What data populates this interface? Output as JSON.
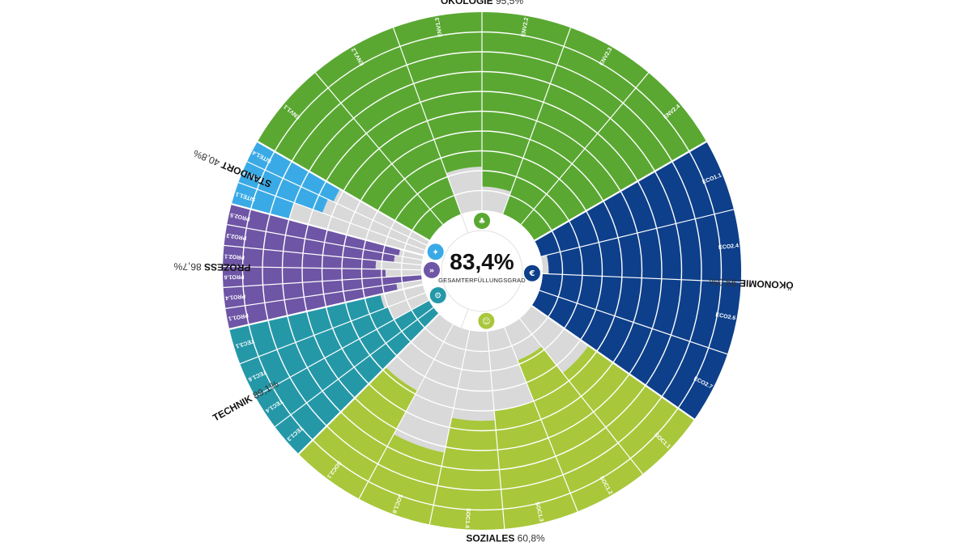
{
  "chart_data": {
    "type": "radial-bar",
    "center": {
      "value": "83,4%",
      "label": "GESAMTERFÜLLUNGSGRAD"
    },
    "max": 100,
    "categories": [
      {
        "name": "ÖKOLOGIE",
        "percent": "95,5%",
        "color": "#5aa832",
        "icon": "leaf-icon",
        "criteria": [
          {
            "label": "ENV1.1",
            "value": 100
          },
          {
            "label": "ENV1.2",
            "value": 100
          },
          {
            "label": "ENV1.3",
            "value": 78
          },
          {
            "label": "ENV2.2",
            "value": 88
          },
          {
            "label": "ENV2.3",
            "value": 100
          },
          {
            "label": "ENV2.4",
            "value": 100
          }
        ]
      },
      {
        "name": "ÖKONOMIE",
        "percent": "99,0%",
        "color": "#0e3f8a",
        "icon": "euro-icon",
        "criteria": [
          {
            "label": "ECO1.1",
            "value": 100
          },
          {
            "label": "ECO2.4",
            "value": 97
          },
          {
            "label": "ECO2.6",
            "value": 100
          },
          {
            "label": "ECO2.7",
            "value": 100
          }
        ]
      },
      {
        "name": "SOZIALES",
        "percent": "60,8%",
        "color": "#a9c73b",
        "icon": "people-icon",
        "criteria": [
          {
            "label": "SOC1.1",
            "value": 65
          },
          {
            "label": "SOC1.2",
            "value": 82
          },
          {
            "label": "SOC1.3",
            "value": 60
          },
          {
            "label": "SOC1.4",
            "value": 55
          },
          {
            "label": "SOC1.6",
            "value": 37
          },
          {
            "label": "SOC2.1",
            "value": 62
          }
        ]
      },
      {
        "name": "TECHNIK",
        "percent": "89,1%",
        "color": "#2598a8",
        "icon": "gears-icon",
        "criteria": [
          {
            "label": "TEC1.3",
            "value": 100
          },
          {
            "label": "TEC1.4",
            "value": 100
          },
          {
            "label": "TEC1.6",
            "value": 80
          },
          {
            "label": "TEC3.1",
            "value": 78
          }
        ]
      },
      {
        "name": "PROZESS",
        "percent": "86,7%",
        "color": "#6e55a5",
        "icon": "process-icon",
        "criteria": [
          {
            "label": "PRO1.1",
            "value": 87
          },
          {
            "label": "PRO1.4",
            "value": 100
          },
          {
            "label": "PRO1.6",
            "value": 82
          },
          {
            "label": "PRO2.1",
            "value": 77
          },
          {
            "label": "PRO2.3",
            "value": 86
          },
          {
            "label": "PRO2.5",
            "value": 88
          }
        ]
      },
      {
        "name": "STANDORT",
        "percent": "40,8%",
        "color": "#3aaae6",
        "icon": "site-icon",
        "criteria": [
          {
            "label": "SITE1.1",
            "value": 30
          },
          {
            "label": "SITE1.3",
            "value": 45
          },
          {
            "label": "SITE1.4",
            "value": 48
          }
        ]
      }
    ],
    "unfilled_color": "#d9d9d9",
    "ring_line_color": "#ffffff"
  }
}
